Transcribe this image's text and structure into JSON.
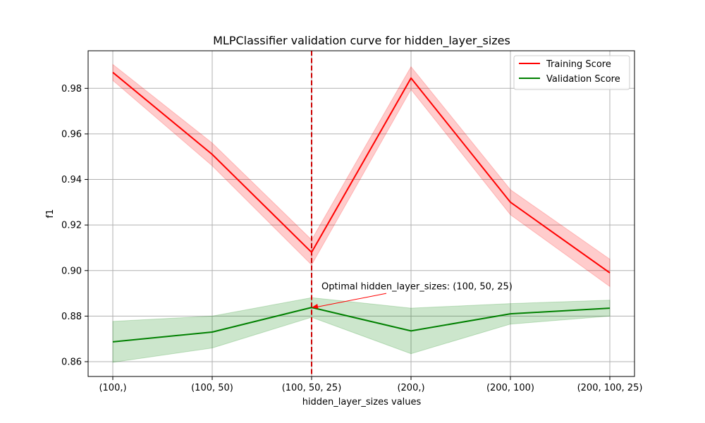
{
  "chart_data": {
    "type": "line",
    "title": "MLPClassifier validation curve for hidden_layer_sizes",
    "xlabel": "hidden_layer_sizes values",
    "ylabel": "f1",
    "categories": [
      "(100,)",
      "(100, 50)",
      "(100, 50, 25)",
      "(200,)",
      "(200, 100)",
      "(200, 100, 25)"
    ],
    "ylim": [
      0.8535,
      0.9965
    ],
    "yticks": [
      0.86,
      0.88,
      0.9,
      0.92,
      0.94,
      0.96,
      0.98
    ],
    "ytick_labels": [
      "0.86",
      "0.88",
      "0.90",
      "0.92",
      "0.94",
      "0.96",
      "0.98"
    ],
    "grid": true,
    "legend_position": "top-right",
    "series": [
      {
        "name": "Training Score",
        "color": "#ff0000",
        "band_color": "#ff0000",
        "values": [
          0.987,
          0.951,
          0.908,
          0.9845,
          0.93,
          0.899
        ],
        "lower": [
          0.9835,
          0.946,
          0.9025,
          0.9795,
          0.9245,
          0.893
        ],
        "upper": [
          0.9905,
          0.956,
          0.9135,
          0.9895,
          0.9355,
          0.905
        ]
      },
      {
        "name": "Validation Score",
        "color": "#008000",
        "band_color": "#008000",
        "values": [
          0.8687,
          0.873,
          0.8838,
          0.8735,
          0.881,
          0.8835
        ],
        "lower": [
          0.8597,
          0.866,
          0.8795,
          0.8635,
          0.8765,
          0.88
        ],
        "upper": [
          0.8777,
          0.88,
          0.8881,
          0.8835,
          0.8855,
          0.887
        ]
      }
    ],
    "optimal_index": 2,
    "vline_color": "#cc0000",
    "annotation": {
      "text": "Optimal hidden_layer_sizes: (100, 50, 25)",
      "color": "#ff0000"
    }
  }
}
